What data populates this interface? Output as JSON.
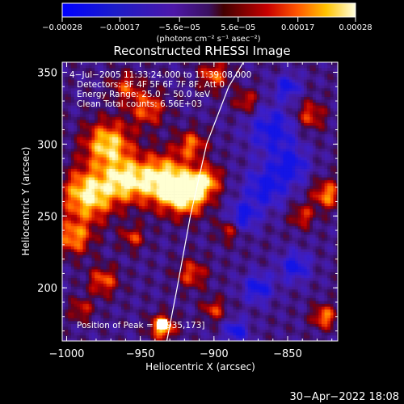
{
  "chart_data": {
    "type": "heatmap",
    "title": "Reconstructed RHESSI Image",
    "xlabel": "Heliocentric X (arcsec)",
    "ylabel": "Heliocentric Y (arcsec)",
    "xlim": [
      -1003,
      -816
    ],
    "ylim": [
      163,
      357
    ],
    "x_ticks": [
      -1000,
      -950,
      -900,
      -850
    ],
    "x_tick_labels": [
      "−1000",
      "−950",
      "−900",
      "−850"
    ],
    "y_ticks": [
      200,
      250,
      300,
      350
    ],
    "y_tick_labels": [
      "200",
      "250",
      "300",
      "350"
    ],
    "colorbar": {
      "range": [
        -0.00028,
        0.00028
      ],
      "ticks": [
        -0.00028,
        -0.00017,
        -5.6e-05,
        5.6e-05,
        0.00017,
        0.00028
      ],
      "tick_labels": [
        "−0.00028",
        "−0.00017",
        "−5.6e−05",
        "5.6e−05",
        "0.00017",
        "0.00028"
      ],
      "unit_label": "(photons cm⁻² s⁻¹ asec⁻²)"
    },
    "annotations": [
      "4−Jul−2005 11:33:24.000 to 11:39:08.000",
      "Detectors: 3F 4F 5F 6F 7F 8F, Att 0",
      "Energy Range: 25.0 − 50.0 keV",
      "Clean     Total counts: 6.56E+03"
    ],
    "peak_label": "Position of Peak = [−935,173]",
    "peak": [
      -935,
      173
    ],
    "limb_curve": [
      [
        -932,
        163
      ],
      [
        -925,
        200
      ],
      [
        -916,
        250
      ],
      [
        -905,
        300
      ],
      [
        -890,
        340
      ],
      [
        -880,
        357
      ]
    ]
  },
  "footer": {
    "timestamp": "30−Apr−2022 18:08"
  },
  "colors": {
    "background": "#000000",
    "text": "#ffffff",
    "limb": "#ffffff",
    "peak": "#ffffff"
  }
}
